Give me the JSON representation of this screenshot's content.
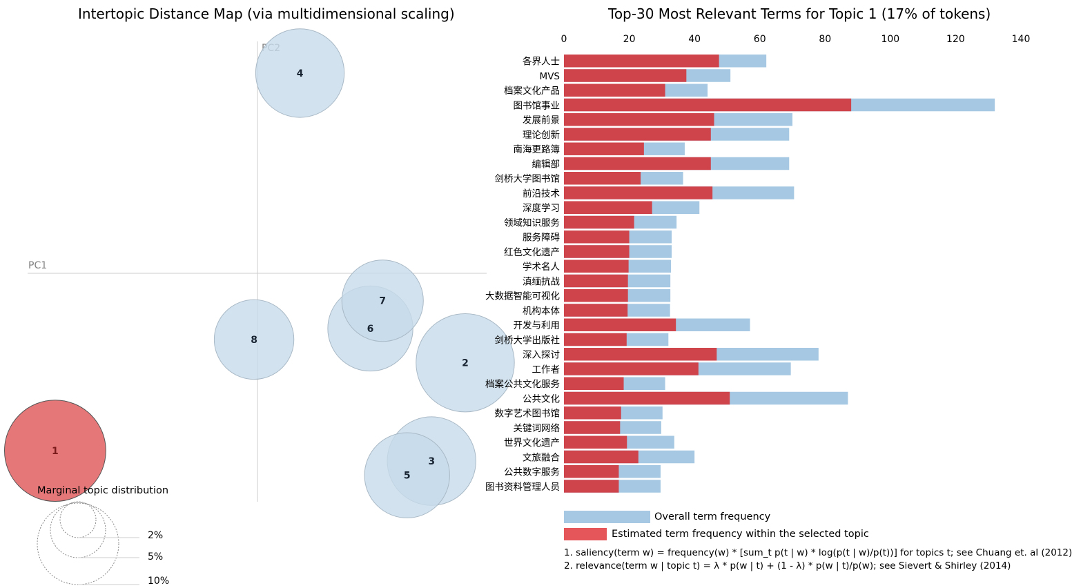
{
  "left_panel": {
    "title": "Intertopic Distance Map (via multidimensional scaling)",
    "pc1_label": "PC1",
    "pc2_label": "PC2",
    "legend_title": "Marginal topic distribution",
    "legend_sizes": [
      "2%",
      "5%",
      "10%"
    ]
  },
  "right_panel": {
    "title": "Top-30 Most Relevant Terms for Topic 1 (17% of tokens)",
    "legend": {
      "overall": "Overall term frequency",
      "estimated": "Estimated term frequency within the selected topic"
    },
    "notes": [
      "1. saliency(term w) = frequency(w) * [sum_t p(t | w) * log(p(t | w)/p(t))] for topics t; see Chuang et. al (2012)",
      "2. relevance(term w | topic t) = λ * p(w | t) + (1 - λ) * p(w | t)/p(w); see Sievert & Shirley (2014)"
    ]
  },
  "colors": {
    "overall_bar": "#a6c8e2",
    "topic_bar": "#cf434b",
    "bubble_fill": "#c7dbea",
    "bubble_stroke": "#a9b9c6",
    "selected_bubble": "#e57779"
  },
  "chart_data": [
    {
      "type": "scatter",
      "xlabel": "PC1",
      "ylabel": "PC2",
      "xlim": [
        -0.38,
        0.37
      ],
      "ylim": [
        -0.37,
        0.36
      ],
      "selected_topic": "1",
      "points": [
        {
          "topic": "1",
          "x": -0.335,
          "y": -0.273,
          "size_pct": 17
        },
        {
          "topic": "2",
          "x": 0.335,
          "y": -0.137,
          "size_pct": 16
        },
        {
          "topic": "3",
          "x": 0.28,
          "y": -0.289,
          "size_pct": 13
        },
        {
          "topic": "4",
          "x": 0.065,
          "y": 0.311,
          "size_pct": 13
        },
        {
          "topic": "5",
          "x": 0.24,
          "y": -0.311,
          "size_pct": 12
        },
        {
          "topic": "6",
          "x": 0.18,
          "y": -0.084,
          "size_pct": 12
        },
        {
          "topic": "7",
          "x": 0.2,
          "y": -0.041,
          "size_pct": 11
        },
        {
          "topic": "8",
          "x": -0.01,
          "y": -0.101,
          "size_pct": 10.5
        }
      ]
    },
    {
      "type": "bar",
      "orientation": "horizontal",
      "title": "Top-30 Most Relevant Terms for Topic 1 (17% of tokens)",
      "xlim": [
        0,
        140
      ],
      "x_ticks": [
        0,
        20,
        40,
        60,
        80,
        100,
        120,
        140
      ],
      "categories": [
        "各界人士",
        "MVS",
        "档案文化产品",
        "图书馆事业",
        "发展前景",
        "理论创新",
        "南海更路簿",
        "编辑部",
        "剑桥大学图书馆",
        "前沿技术",
        "深度学习",
        "领域知识服务",
        "服务障碍",
        "红色文化遗产",
        "学术名人",
        "滇缅抗战",
        "大数据智能可视化",
        "机构本体",
        "开发与利用",
        "剑桥大学出版社",
        "深入探讨",
        "工作者",
        "档案公共文化服务",
        "公共文化",
        "数字艺术图书馆",
        "关键词网络",
        "世界文化遗产",
        "文旅融合",
        "公共数字服务",
        "图书资料管理人员"
      ],
      "series": [
        {
          "name": "Overall term frequency",
          "values": [
            62,
            51,
            44,
            132,
            70,
            69,
            37,
            69,
            36.5,
            70.5,
            41.5,
            34.5,
            33,
            33,
            32.8,
            32.6,
            32.6,
            32.5,
            57,
            32,
            78,
            69.5,
            31,
            87,
            30.2,
            29.8,
            33.8,
            40,
            29.6,
            29.6
          ]
        },
        {
          "name": "Estimated term frequency within the selected topic",
          "values": [
            47.5,
            37.5,
            31,
            88,
            46,
            45,
            24.5,
            45,
            23.5,
            45.5,
            27,
            21.5,
            20,
            20,
            19.8,
            19.6,
            19.6,
            19.5,
            34.3,
            19.2,
            46.8,
            41.2,
            18.3,
            50.8,
            17.5,
            17.2,
            19.3,
            22.8,
            16.8,
            16.8
          ]
        }
      ]
    }
  ]
}
